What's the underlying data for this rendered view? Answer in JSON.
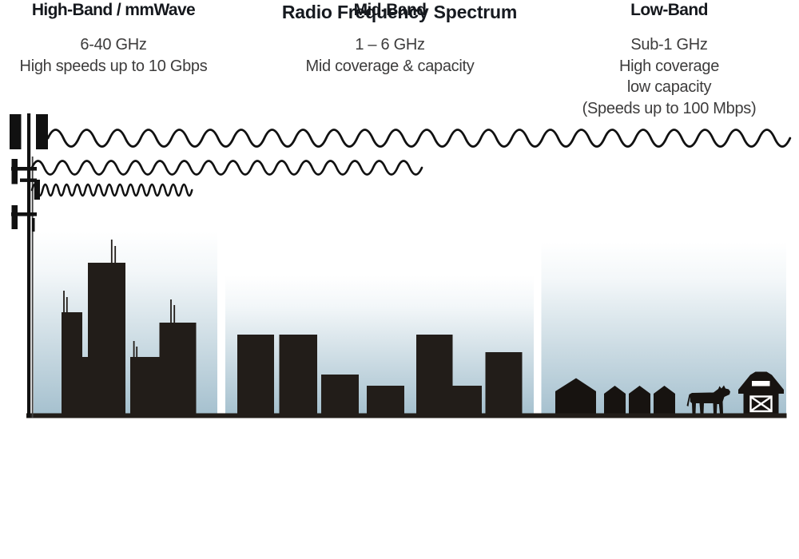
{
  "title": "Radio Frequency Spectrum",
  "bands": [
    {
      "id": "high-band",
      "heading": "High-Band / mmWave",
      "lines": [
        "6-40 GHz",
        "High speeds up to 10 Gbps"
      ],
      "scene": "city-skyline",
      "wave": "short-wavelength-wave"
    },
    {
      "id": "mid-band",
      "heading": "Mid-Band",
      "lines": [
        "1 – 6 GHz",
        "Mid coverage & capacity"
      ],
      "scene": "suburban-buildings",
      "wave": "medium-wavelength-wave"
    },
    {
      "id": "low-band",
      "heading": "Low-Band",
      "lines": [
        "Sub-1 GHz",
        "High coverage",
        "low capacity",
        "(Speeds up to 100 Mbps)"
      ],
      "scene": "rural-farm",
      "wave": "long-wavelength-wave"
    }
  ],
  "icons": {
    "tower": "cell-tower-icon",
    "farm": [
      "house-icon",
      "cow-icon",
      "barn-icon"
    ],
    "waves": [
      "long-wavelength-wave",
      "medium-wavelength-wave",
      "short-wavelength-wave"
    ]
  },
  "colors": {
    "ink": "#111111",
    "building": "#221d19",
    "title_text": "#161a20",
    "heading_text": "#15181d",
    "body_text": "#3d3c3c",
    "sky_gradient_top": "#ffffff",
    "sky_gradient_bottom": "#a6c1cf"
  }
}
